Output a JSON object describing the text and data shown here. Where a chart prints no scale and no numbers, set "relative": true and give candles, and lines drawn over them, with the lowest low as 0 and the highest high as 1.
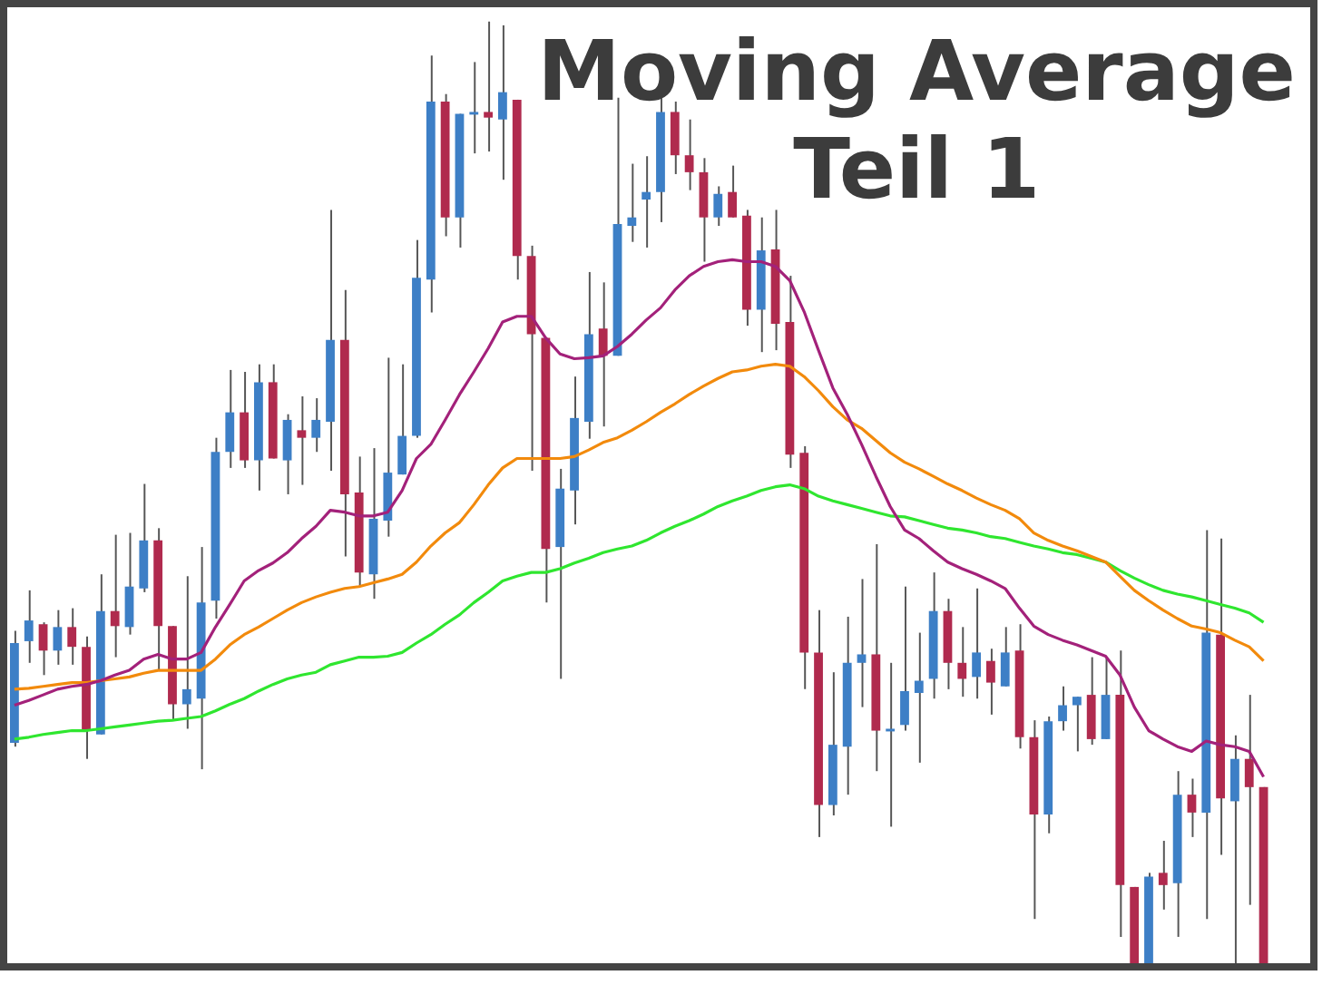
{
  "chart_data": {
    "type": "candlestick",
    "title": "Moving Average\nTeil 1",
    "relative": true,
    "legend": false,
    "grid": false,
    "tick_labels": false,
    "marker": "none",
    "categories": [
      null,
      null,
      null,
      null,
      null,
      null,
      null,
      null,
      null,
      null,
      null,
      null,
      null,
      null,
      null,
      null,
      null,
      null,
      null,
      null,
      null,
      null,
      null,
      null,
      null,
      null,
      null,
      null,
      null,
      null,
      null,
      null,
      null,
      null,
      null,
      null,
      null,
      null,
      null,
      null,
      null,
      null,
      null,
      null,
      null,
      null,
      null,
      null,
      null,
      null,
      null,
      null,
      null,
      null,
      null,
      null,
      null,
      null,
      null,
      null,
      null,
      null,
      null,
      null,
      null,
      null,
      null,
      null,
      null,
      null,
      null,
      null,
      null,
      null,
      null,
      null,
      null,
      null,
      null,
      null,
      null,
      null,
      null,
      null,
      null,
      null,
      null,
      null
    ],
    "ohlc": [
      [
        0.234,
        0.353,
        0.23,
        0.34
      ],
      [
        0.342,
        0.396,
        0.319,
        0.364
      ],
      [
        0.36,
        0.362,
        0.306,
        0.332
      ],
      [
        0.332,
        0.375,
        0.317,
        0.357
      ],
      [
        0.357,
        0.377,
        0.317,
        0.336
      ],
      [
        0.336,
        0.347,
        0.217,
        0.247
      ],
      [
        0.243,
        0.413,
        0.243,
        0.374
      ],
      [
        0.374,
        0.455,
        0.325,
        0.358
      ],
      [
        0.357,
        0.457,
        0.349,
        0.4
      ],
      [
        0.398,
        0.509,
        0.394,
        0.449
      ],
      [
        0.449,
        0.462,
        0.311,
        0.358
      ],
      [
        0.358,
        0.358,
        0.258,
        0.275
      ],
      [
        0.275,
        0.411,
        0.249,
        0.291
      ],
      [
        0.281,
        0.442,
        0.206,
        0.383
      ],
      [
        0.385,
        0.558,
        0.366,
        0.543
      ],
      [
        0.543,
        0.63,
        0.526,
        0.585
      ],
      [
        0.585,
        0.628,
        0.526,
        0.534
      ],
      [
        0.534,
        0.636,
        0.502,
        0.617
      ],
      [
        0.617,
        0.636,
        0.536,
        0.536
      ],
      [
        0.534,
        0.583,
        0.498,
        0.577
      ],
      [
        0.566,
        0.602,
        0.508,
        0.558
      ],
      [
        0.558,
        0.6,
        0.543,
        0.577
      ],
      [
        0.575,
        0.8,
        0.523,
        0.662
      ],
      [
        0.662,
        0.715,
        0.432,
        0.498
      ],
      [
        0.5,
        0.538,
        0.4,
        0.415
      ],
      [
        0.413,
        0.547,
        0.387,
        0.472
      ],
      [
        0.47,
        0.643,
        0.453,
        0.521
      ],
      [
        0.519,
        0.636,
        0.519,
        0.56
      ],
      [
        0.56,
        0.768,
        0.558,
        0.728
      ],
      [
        0.726,
        0.964,
        0.691,
        0.915
      ],
      [
        0.915,
        0.923,
        0.772,
        0.792
      ],
      [
        0.792,
        0.902,
        0.76,
        0.902
      ],
      [
        0.904,
        0.957,
        0.86,
        0.904
      ],
      [
        0.904,
        1,
        0.862,
        0.898
      ],
      [
        0.896,
        0.996,
        0.832,
        0.925
      ],
      [
        0.917,
        0.917,
        0.726,
        0.751
      ],
      [
        0.751,
        0.762,
        0.523,
        0.668
      ],
      [
        0.664,
        0.664,
        0.383,
        0.44
      ],
      [
        0.442,
        0.525,
        0.302,
        0.504
      ],
      [
        0.502,
        0.623,
        0.466,
        0.579
      ],
      [
        0.575,
        0.734,
        0.557,
        0.668
      ],
      [
        0.674,
        0.723,
        0.57,
        0.645
      ],
      [
        0.645,
        0.919,
        0.645,
        0.785
      ],
      [
        0.783,
        0.849,
        0.766,
        0.792
      ],
      [
        0.811,
        0.857,
        0.76,
        0.819
      ],
      [
        0.819,
        0.919,
        0.787,
        0.904
      ],
      [
        0.904,
        0.915,
        0.838,
        0.858
      ],
      [
        0.858,
        0.896,
        0.821,
        0.84
      ],
      [
        0.84,
        0.855,
        0.745,
        0.792
      ],
      [
        0.792,
        0.825,
        0.783,
        0.817
      ],
      [
        0.819,
        0.847,
        0.792,
        0.792
      ],
      [
        0.794,
        0.8,
        0.677,
        0.694
      ],
      [
        0.694,
        0.792,
        0.649,
        0.757
      ],
      [
        0.758,
        0.8,
        0.651,
        0.679
      ],
      [
        0.681,
        0.73,
        0.526,
        0.54
      ],
      [
        0.542,
        0.549,
        0.291,
        0.33
      ],
      [
        0.33,
        0.375,
        0.134,
        0.168
      ],
      [
        0.168,
        0.309,
        0.157,
        0.232
      ],
      [
        0.23,
        0.368,
        0.179,
        0.319
      ],
      [
        0.319,
        0.408,
        0.272,
        0.328
      ],
      [
        0.328,
        0.445,
        0.204,
        0.247
      ],
      [
        0.249,
        0.319,
        0.145,
        0.249
      ],
      [
        0.253,
        0.4,
        0.247,
        0.289
      ],
      [
        0.287,
        0.351,
        0.213,
        0.3
      ],
      [
        0.302,
        0.415,
        0.281,
        0.374
      ],
      [
        0.374,
        0.387,
        0.291,
        0.319
      ],
      [
        0.319,
        0.357,
        0.283,
        0.302
      ],
      [
        0.304,
        0.398,
        0.281,
        0.33
      ],
      [
        0.321,
        0.334,
        0.264,
        0.298
      ],
      [
        0.294,
        0.357,
        0.294,
        0.33
      ],
      [
        0.332,
        0.36,
        0.228,
        0.24
      ],
      [
        0.24,
        0.258,
        0.047,
        0.158
      ],
      [
        0.158,
        0.262,
        0.138,
        0.257
      ],
      [
        0.257,
        0.294,
        0.247,
        0.274
      ],
      [
        0.274,
        0.283,
        0.225,
        0.283
      ],
      [
        0.285,
        0.325,
        0.232,
        0.238
      ],
      [
        0.238,
        0.325,
        0.238,
        0.285
      ],
      [
        0.285,
        0.332,
        0.028,
        0.083
      ],
      [
        0.081,
        0.081,
        0,
        0
      ],
      [
        0,
        0.096,
        0,
        0.092
      ],
      [
        0.096,
        0.13,
        0.057,
        0.083
      ],
      [
        0.085,
        0.204,
        0.028,
        0.179
      ],
      [
        0.179,
        0.196,
        0.134,
        0.16
      ],
      [
        0.16,
        0.46,
        0.047,
        0.351
      ],
      [
        0.349,
        0.451,
        0.115,
        0.175
      ],
      [
        0.172,
        0.242,
        0,
        0.217
      ],
      [
        0.217,
        0.285,
        0.062,
        0.187
      ],
      [
        0.187,
        0.187,
        0,
        0
      ]
    ],
    "colors": [
      "#3d7fc6",
      "#3d7fc6",
      "#b02a4e",
      "#3d7fc6",
      "#b02a4e",
      "#b02a4e",
      "#3d7fc6",
      "#b02a4e",
      "#3d7fc6",
      "#3d7fc6",
      "#b02a4e",
      "#b02a4e",
      "#3d7fc6",
      "#3d7fc6",
      "#3d7fc6",
      "#3d7fc6",
      "#b02a4e",
      "#3d7fc6",
      "#b02a4e",
      "#3d7fc6",
      "#b02a4e",
      "#3d7fc6",
      "#3d7fc6",
      "#b02a4e",
      "#b02a4e",
      "#3d7fc6",
      "#3d7fc6",
      "#3d7fc6",
      "#3d7fc6",
      "#3d7fc6",
      "#b02a4e",
      "#3d7fc6",
      "#3d7fc6",
      "#b02a4e",
      "#3d7fc6",
      "#b02a4e",
      "#b02a4e",
      "#b02a4e",
      "#3d7fc6",
      "#3d7fc6",
      "#3d7fc6",
      "#b02a4e",
      "#3d7fc6",
      "#3d7fc6",
      "#3d7fc6",
      "#3d7fc6",
      "#b02a4e",
      "#b02a4e",
      "#b02a4e",
      "#3d7fc6",
      "#b02a4e",
      "#b02a4e",
      "#3d7fc6",
      "#b02a4e",
      "#b02a4e",
      "#b02a4e",
      "#b02a4e",
      "#3d7fc6",
      "#3d7fc6",
      "#3d7fc6",
      "#b02a4e",
      "#3d7fc6",
      "#3d7fc6",
      "#3d7fc6",
      "#3d7fc6",
      "#b02a4e",
      "#b02a4e",
      "#3d7fc6",
      "#b02a4e",
      "#3d7fc6",
      "#b02a4e",
      "#b02a4e",
      "#3d7fc6",
      "#3d7fc6",
      "#3d7fc6",
      "#b02a4e",
      "#3d7fc6",
      "#b02a4e",
      "#b02a4e",
      "#3d7fc6",
      "#b02a4e",
      "#3d7fc6",
      "#b02a4e",
      "#3d7fc6",
      "#b02a4e",
      "#3d7fc6",
      "#b02a4e",
      "#b02a4e"
    ],
    "series": [
      {
        "type": "line",
        "color": "#a3217a",
        "values": [
          0.274,
          0.279,
          0.285,
          0.291,
          0.294,
          0.296,
          0.3,
          0.306,
          0.311,
          0.323,
          0.328,
          0.323,
          0.323,
          0.33,
          0.357,
          0.381,
          0.406,
          0.417,
          0.425,
          0.436,
          0.451,
          0.464,
          0.481,
          0.479,
          0.475,
          0.475,
          0.479,
          0.502,
          0.536,
          0.551,
          0.577,
          0.604,
          0.628,
          0.653,
          0.681,
          0.687,
          0.687,
          0.664,
          0.647,
          0.642,
          0.643,
          0.645,
          0.655,
          0.668,
          0.683,
          0.696,
          0.715,
          0.73,
          0.74,
          0.745,
          0.747,
          0.745,
          0.745,
          0.74,
          0.725,
          0.692,
          0.651,
          0.611,
          0.583,
          0.551,
          0.517,
          0.485,
          0.46,
          0.451,
          0.438,
          0.426,
          0.419,
          0.413,
          0.406,
          0.398,
          0.377,
          0.358,
          0.349,
          0.343,
          0.338,
          0.332,
          0.326,
          0.306,
          0.272,
          0.247,
          0.238,
          0.23,
          0.225,
          0.236,
          0.232,
          0.23,
          0.225,
          0.198
        ]
      },
      {
        "type": "line",
        "color": "#f28a0c",
        "values": [
          0.291,
          0.292,
          0.294,
          0.296,
          0.298,
          0.298,
          0.3,
          0.302,
          0.304,
          0.308,
          0.311,
          0.311,
          0.311,
          0.311,
          0.323,
          0.338,
          0.349,
          0.357,
          0.366,
          0.375,
          0.383,
          0.389,
          0.394,
          0.398,
          0.4,
          0.404,
          0.408,
          0.413,
          0.426,
          0.443,
          0.457,
          0.468,
          0.487,
          0.508,
          0.526,
          0.536,
          0.536,
          0.536,
          0.536,
          0.538,
          0.545,
          0.553,
          0.558,
          0.566,
          0.575,
          0.585,
          0.594,
          0.604,
          0.613,
          0.621,
          0.628,
          0.63,
          0.634,
          0.636,
          0.634,
          0.623,
          0.608,
          0.591,
          0.577,
          0.568,
          0.555,
          0.542,
          0.532,
          0.525,
          0.517,
          0.509,
          0.502,
          0.494,
          0.487,
          0.481,
          0.472,
          0.457,
          0.449,
          0.443,
          0.438,
          0.432,
          0.426,
          0.411,
          0.396,
          0.385,
          0.375,
          0.366,
          0.358,
          0.355,
          0.351,
          0.343,
          0.336,
          0.321
        ]
      },
      {
        "type": "line",
        "color": "#2fe62f",
        "values": [
          0.238,
          0.24,
          0.243,
          0.245,
          0.247,
          0.247,
          0.249,
          0.251,
          0.253,
          0.255,
          0.257,
          0.258,
          0.26,
          0.262,
          0.268,
          0.275,
          0.281,
          0.289,
          0.296,
          0.302,
          0.306,
          0.309,
          0.317,
          0.321,
          0.325,
          0.325,
          0.326,
          0.33,
          0.34,
          0.349,
          0.36,
          0.37,
          0.383,
          0.394,
          0.406,
          0.411,
          0.415,
          0.415,
          0.419,
          0.425,
          0.43,
          0.436,
          0.44,
          0.443,
          0.449,
          0.457,
          0.464,
          0.47,
          0.477,
          0.485,
          0.491,
          0.496,
          0.502,
          0.506,
          0.508,
          0.504,
          0.496,
          0.491,
          0.487,
          0.483,
          0.479,
          0.475,
          0.474,
          0.47,
          0.466,
          0.462,
          0.46,
          0.457,
          0.453,
          0.451,
          0.447,
          0.443,
          0.44,
          0.436,
          0.434,
          0.43,
          0.426,
          0.417,
          0.409,
          0.402,
          0.396,
          0.392,
          0.389,
          0.385,
          0.381,
          0.377,
          0.372,
          0.362
        ]
      }
    ]
  }
}
